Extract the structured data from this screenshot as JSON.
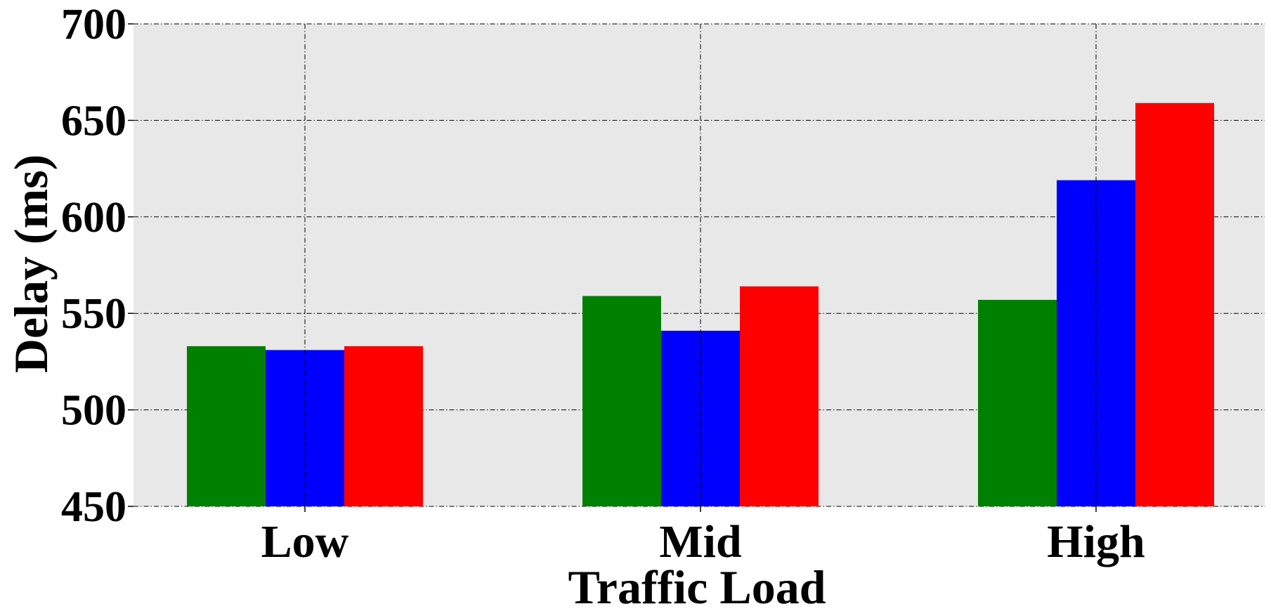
{
  "chart_data": {
    "type": "bar",
    "title": "",
    "xlabel": "Traffic Load",
    "ylabel": "Delay (ms)",
    "categories": [
      "Low",
      "Mid",
      "High"
    ],
    "series": [
      {
        "color": "#008000",
        "values": [
          533,
          559,
          557
        ]
      },
      {
        "color": "#0000ff",
        "values": [
          531,
          541,
          619
        ]
      },
      {
        "color": "#ff0000",
        "values": [
          533,
          564,
          659
        ]
      }
    ],
    "ylim": [
      450,
      700
    ],
    "yticks": [
      "450",
      "500",
      "550",
      "600",
      "650",
      "700"
    ],
    "grid": true,
    "grid_style": "dashed",
    "legend": false,
    "background": "#e8e8e8"
  }
}
